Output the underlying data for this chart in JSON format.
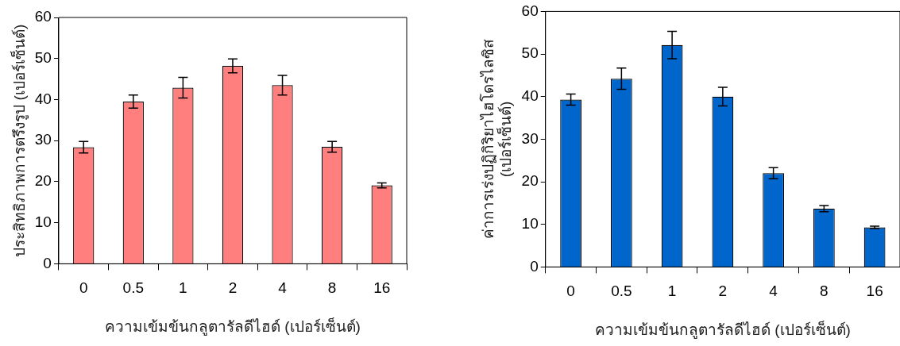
{
  "chart_data": [
    {
      "type": "bar",
      "xlabel": "ความเข้มข้นกลูตารัลดีไฮด์ (เปอร์เซ็นต์)",
      "ylabel": "ประสิทธิภาพการตรึงรูป (เปอร์เซ็นต์)",
      "categories": [
        "0",
        "0.5",
        "1",
        "2",
        "4",
        "8",
        "16"
      ],
      "color": "#ff7f7f",
      "values": [
        28.4,
        39.5,
        42.9,
        48.2,
        43.5,
        28.5,
        19.1
      ],
      "errors": [
        1.4,
        1.6,
        2.5,
        1.7,
        2.4,
        1.3,
        0.6
      ],
      "ylim": [
        0,
        60
      ],
      "yticks": [
        0,
        10,
        20,
        30,
        40,
        50,
        60
      ]
    },
    {
      "type": "bar",
      "xlabel": "ความเข้มข้นกลูตารัลดีไฮด์ (เปอร์เซ็นต์)",
      "ylabel": "ค่าการเร่งปฏิกิริยาไฮโดรไลซิส\n(เปอร์เซ็นต์)",
      "categories": [
        "0",
        "0.5",
        "1",
        "2",
        "4",
        "8",
        "16"
      ],
      "color": "#0066cc",
      "values": [
        39.3,
        44.2,
        52.1,
        40.0,
        22.0,
        13.7,
        9.3
      ],
      "errors": [
        1.3,
        2.5,
        3.2,
        2.2,
        1.3,
        0.7,
        0.3
      ],
      "ylim": [
        0,
        60
      ],
      "yticks": [
        0,
        10,
        20,
        30,
        40,
        50,
        60
      ]
    }
  ]
}
